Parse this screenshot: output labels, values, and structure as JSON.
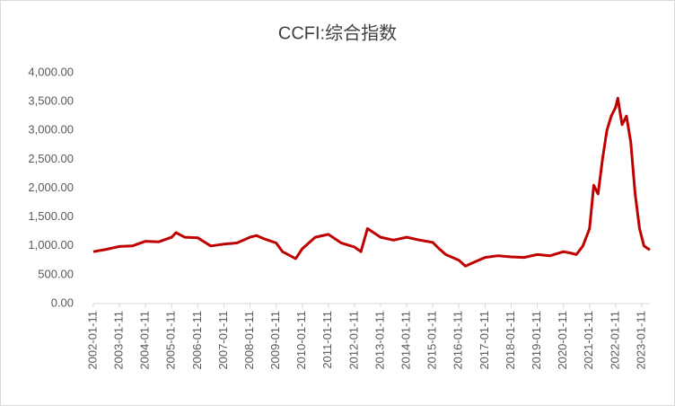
{
  "chart_data": {
    "type": "line",
    "title": "CCFI:综合指数",
    "x": [
      "2002-01-11",
      "2002-07-11",
      "2003-01-11",
      "2003-07-11",
      "2004-01-11",
      "2004-07-11",
      "2005-01-11",
      "2005-03-11",
      "2005-07-11",
      "2006-01-11",
      "2006-07-11",
      "2007-01-11",
      "2007-07-11",
      "2008-01-11",
      "2008-04-11",
      "2008-07-11",
      "2009-01-11",
      "2009-04-11",
      "2009-10-11",
      "2010-01-11",
      "2010-07-11",
      "2011-01-11",
      "2011-07-11",
      "2012-01-11",
      "2012-04-11",
      "2012-07-11",
      "2013-01-11",
      "2013-07-11",
      "2014-01-11",
      "2014-07-11",
      "2015-01-11",
      "2015-04-11",
      "2015-07-11",
      "2016-01-11",
      "2016-04-11",
      "2016-07-11",
      "2017-01-11",
      "2017-07-11",
      "2018-01-11",
      "2018-07-11",
      "2019-01-11",
      "2019-07-11",
      "2020-01-11",
      "2020-04-11",
      "2020-07-11",
      "2020-10-11",
      "2021-01-11",
      "2021-03-11",
      "2021-05-11",
      "2021-07-11",
      "2021-09-11",
      "2021-11-11",
      "2022-01-11",
      "2022-02-11",
      "2022-04-11",
      "2022-06-11",
      "2022-08-11",
      "2022-10-11",
      "2022-12-11",
      "2023-02-11",
      "2023-05-05"
    ],
    "series": [
      {
        "name": "CCFI:综合指数",
        "color": "#c00000",
        "values": [
          900,
          940,
          990,
          1000,
          1080,
          1070,
          1150,
          1230,
          1150,
          1140,
          1000,
          1030,
          1050,
          1150,
          1180,
          1130,
          1050,
          900,
          780,
          950,
          1150,
          1200,
          1050,
          980,
          900,
          1300,
          1150,
          1100,
          1150,
          1100,
          1060,
          950,
          850,
          750,
          650,
          700,
          800,
          830,
          810,
          800,
          850,
          830,
          900,
          880,
          850,
          1000,
          1300,
          2050,
          1900,
          2500,
          3000,
          3250,
          3400,
          3560,
          3100,
          3250,
          2800,
          1900,
          1300,
          1000,
          930
        ]
      }
    ],
    "xlim": [
      "2002-01-11",
      "2023-05-05"
    ],
    "xticks": [
      "2002-01-11",
      "2003-01-11",
      "2004-01-11",
      "2005-01-11",
      "2006-01-11",
      "2007-01-11",
      "2008-01-11",
      "2009-01-11",
      "2010-01-11",
      "2011-01-11",
      "2012-01-11",
      "2013-01-11",
      "2014-01-11",
      "2015-01-11",
      "2016-01-11",
      "2017-01-11",
      "2018-01-11",
      "2019-01-11",
      "2020-01-11",
      "2021-01-11",
      "2022-01-11",
      "2023-01-11"
    ],
    "ylim": [
      0,
      4000
    ],
    "yticks": [
      {
        "value": 0,
        "label": "0.00"
      },
      {
        "value": 500,
        "label": "500.00"
      },
      {
        "value": 1000,
        "label": "1,000.00"
      },
      {
        "value": 1500,
        "label": "1,500.00"
      },
      {
        "value": 2000,
        "label": "2,000.00"
      },
      {
        "value": 2500,
        "label": "2,500.00"
      },
      {
        "value": 3000,
        "label": "3,000.00"
      },
      {
        "value": 3500,
        "label": "3,500.00"
      },
      {
        "value": 4000,
        "label": "4,000.00"
      }
    ]
  }
}
